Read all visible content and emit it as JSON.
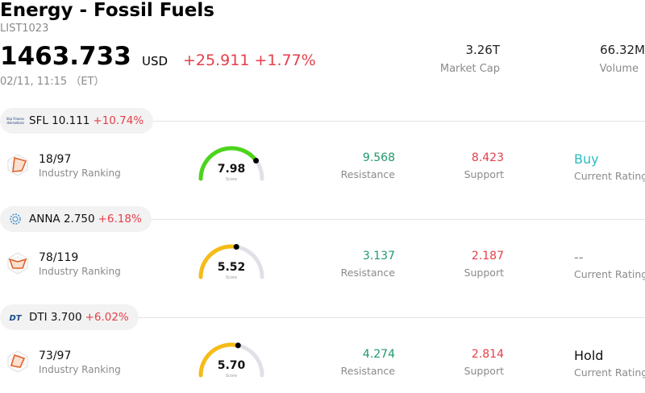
{
  "header": {
    "title": "Energy - Fossil Fuels",
    "code": "LIST1023",
    "price": "1463.733",
    "currency": "USD",
    "change": "+25.911 +1.77%",
    "time": "02/11, 11:15 （ET）",
    "market_cap_value": "3.26T",
    "market_cap_label": "Market Cap",
    "volume_value": "66.32M",
    "volume_label": "Volume"
  },
  "stocks": [
    {
      "symbol": "SFL 10.111",
      "change": "+10.74%",
      "logo_text": "Ship Finance International",
      "ranking": "18/97",
      "ranking_label": "Industry Ranking",
      "score": "7.98",
      "score_value": 7.98,
      "score_label": "Score",
      "gauge_color": "#4cd41c",
      "resistance": "9.568",
      "resistance_label": "Resistance",
      "support": "8.423",
      "support_label": "Support",
      "rating": "Buy",
      "rating_color": "#2bbcc0",
      "rating_label": "Current Rating"
    },
    {
      "symbol": "ANNA 2.750",
      "change": "+6.18%",
      "logo_text": "",
      "ranking": "78/119",
      "ranking_label": "Industry Ranking",
      "score": "5.52",
      "score_value": 5.52,
      "score_label": "Score",
      "gauge_color": "#f5bc17",
      "resistance": "3.137",
      "resistance_label": "Resistance",
      "support": "2.187",
      "support_label": "Support",
      "rating": "--",
      "rating_color": "#8a8a8a",
      "rating_label": "Current Rating"
    },
    {
      "symbol": "DTI 3.700",
      "change": "+6.02%",
      "logo_text": "DT",
      "ranking": "73/97",
      "ranking_label": "Industry Ranking",
      "score": "5.70",
      "score_value": 5.7,
      "score_label": "Score",
      "gauge_color": "#f5bc17",
      "resistance": "4.274",
      "resistance_label": "Resistance",
      "support": "2.814",
      "support_label": "Support",
      "rating": "Hold",
      "rating_color": "#111111",
      "rating_label": "Current Rating"
    }
  ],
  "colors": {
    "up": "#e53e4a",
    "resistance": "#1e9a6a",
    "gauge_track": "#e0e0e8"
  }
}
